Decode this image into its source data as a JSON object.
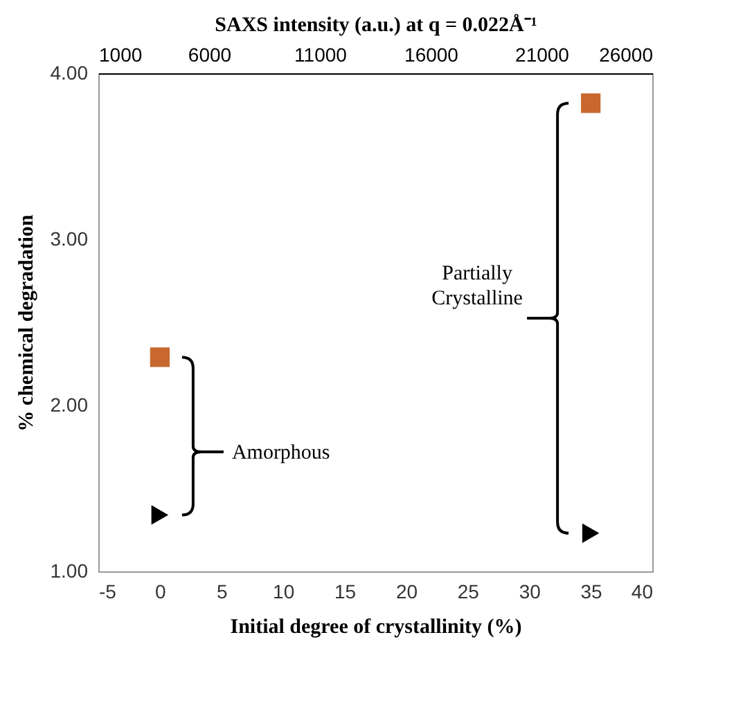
{
  "chart_data": {
    "type": "scatter",
    "xlabel": "Initial degree of crystallinity (%)",
    "x2label": "SAXS intensity (a.u.) at q = 0.022Å⁻¹",
    "ylabel": "% chemical degradation",
    "x": [
      0,
      35
    ],
    "series": [
      {
        "color": "#c8682f",
        "marker": "square",
        "values": [
          2.29,
          3.82
        ]
      },
      {
        "color": "#000000",
        "marker": "triangle",
        "values": [
          1.34,
          1.23
        ]
      }
    ],
    "xlim": [
      -5,
      40
    ],
    "xticks": [
      -5,
      0,
      5,
      10,
      15,
      20,
      25,
      30,
      35,
      40
    ],
    "x2lim": [
      1000,
      26000
    ],
    "x2ticks": [
      1000,
      6000,
      11000,
      16000,
      21000,
      26000
    ],
    "ylim": [
      1,
      4
    ],
    "yticks": [
      {
        "value": 1,
        "label": "1.00"
      },
      {
        "value": 2,
        "label": "2.00"
      },
      {
        "value": 3,
        "label": "3.00"
      },
      {
        "value": 4,
        "label": "4.00"
      }
    ],
    "annotations": [
      "Amorphous",
      "Partially\nCrystalline"
    ],
    "grid": false
  }
}
